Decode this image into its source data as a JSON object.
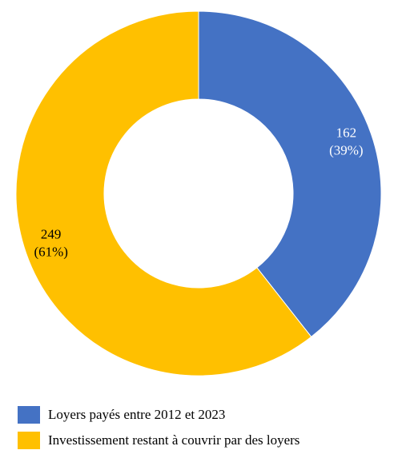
{
  "chart_data": {
    "type": "donut",
    "series": [
      {
        "name": "Loyers payés entre 2012 et 2023",
        "color": "#4472c4",
        "values": [
          162
        ],
        "percent_labels": [
          "(39%)"
        ]
      },
      {
        "name": "Investissement restant à couvrir par des loyers",
        "color": "#ffc000",
        "values": [
          249
        ],
        "percent_labels": [
          "(61%)"
        ]
      }
    ],
    "legend": "bottom-left"
  }
}
